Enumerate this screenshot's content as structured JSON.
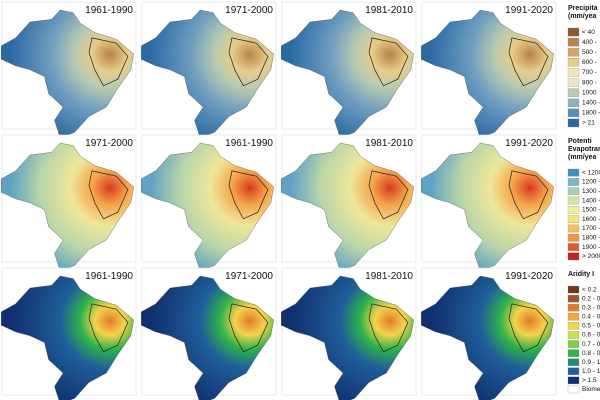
{
  "rows": [
    {
      "panels": [
        "1961-1990",
        "1971-2000",
        "1981-2010",
        "1991-2020"
      ]
    },
    {
      "panels": [
        "1971-2000",
        "1961-1990",
        "1981-2010",
        "1991-2020"
      ]
    },
    {
      "panels": [
        "1961-1990",
        "1971-2000",
        "1981-2010",
        "1991-2020"
      ]
    }
  ],
  "legends": [
    {
      "title": [
        "Precipita",
        "(mm/yea"
      ],
      "items": [
        "< 40",
        "400 -",
        "500 -",
        "600 -",
        "700 -",
        "800 -",
        "1000",
        "1400 -",
        "1800 -",
        "> 21"
      ],
      "colors": [
        "#8c5a2b",
        "#b9824a",
        "#d4a862",
        "#e6cd8a",
        "#f1e6b4",
        "#e9e8c6",
        "#b8cbb0",
        "#8fb0bf",
        "#5b8db5",
        "#2a6aa3"
      ]
    },
    {
      "title": [
        "Potenti",
        "Evapotrans",
        "(mm/yea"
      ],
      "items": [
        "< 1200",
        "1200 -",
        "1300 -",
        "1400 -",
        "1500 -",
        "1600 -",
        "1700 -",
        "1800 -",
        "1900 -",
        "> 2000"
      ],
      "colors": [
        "#3c8fc4",
        "#7fb6c8",
        "#a9cfb4",
        "#cfe3a4",
        "#eef0a0",
        "#f7e27c",
        "#f8bf5a",
        "#f29442",
        "#e6592e",
        "#c8201e"
      ]
    },
    {
      "title": [
        "Aridity I"
      ],
      "items": [
        "< 0.2",
        "0.2 - 0",
        "0.3 - 0",
        "0.4 - 0",
        "0.5 - 0",
        "0.6 - 0",
        "0.7 - 0",
        "0.8 - 0",
        "0.9 - 1",
        "1.0 - 1",
        "> 1.5",
        "Biome"
      ],
      "colors": [
        "#6b3b1f",
        "#a0522d",
        "#e07b2a",
        "#f2a83a",
        "#f5d24a",
        "#c9e04a",
        "#7dcf3c",
        "#2fb34a",
        "#1e8f6e",
        "#1f5f9a",
        "#0f2f6e",
        "#ffffff"
      ]
    }
  ]
}
